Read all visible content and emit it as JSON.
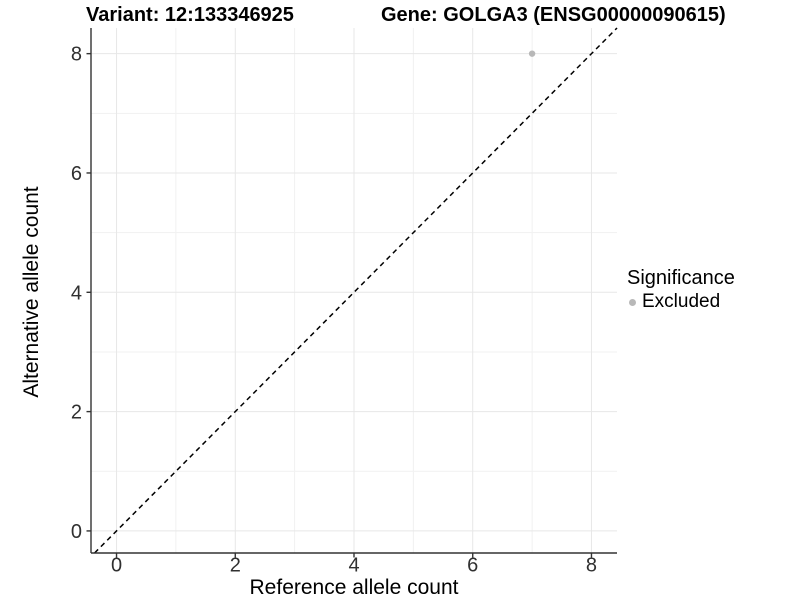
{
  "header": {
    "variant_title": "Variant: 12:133346925",
    "gene_title": "Gene: GOLGA3 (ENSG00000090615)"
  },
  "legend": {
    "title": "Significance",
    "items": [
      {
        "label": "Excluded",
        "color": "#b8b8b8",
        "marker": "circle"
      }
    ]
  },
  "chart_data": {
    "type": "scatter",
    "title": "Variant: 12:133346925   Gene: GOLGA3 (ENSG00000090615)",
    "xlabel": "Reference allele count",
    "ylabel": "Alternative allele count",
    "xlim": [
      -0.43,
      8.43
    ],
    "ylim": [
      -0.37,
      8.43
    ],
    "x_major_ticks": [
      0,
      2,
      4,
      6,
      8
    ],
    "x_minor_ticks": [
      1,
      3,
      5,
      7
    ],
    "y_major_ticks": [
      0,
      2,
      4,
      6,
      8
    ],
    "y_minor_ticks": [
      1,
      3,
      5,
      7
    ],
    "grid": true,
    "legend_position": "right",
    "series": [
      {
        "name": "Excluded",
        "color": "#b8b8b8",
        "points": [
          {
            "x": 7,
            "y": 8
          }
        ]
      }
    ],
    "reference_line": {
      "kind": "identity",
      "equation": "y = x",
      "style": "dashed",
      "color": "#000000"
    }
  },
  "style": {
    "background": "#ffffff",
    "grid_major_color": "#e7e7e7",
    "grid_minor_color": "#f1f1f1",
    "axis_color": "#333333",
    "tick_label_color": "#303030",
    "point_color": "#b8b8b8"
  }
}
